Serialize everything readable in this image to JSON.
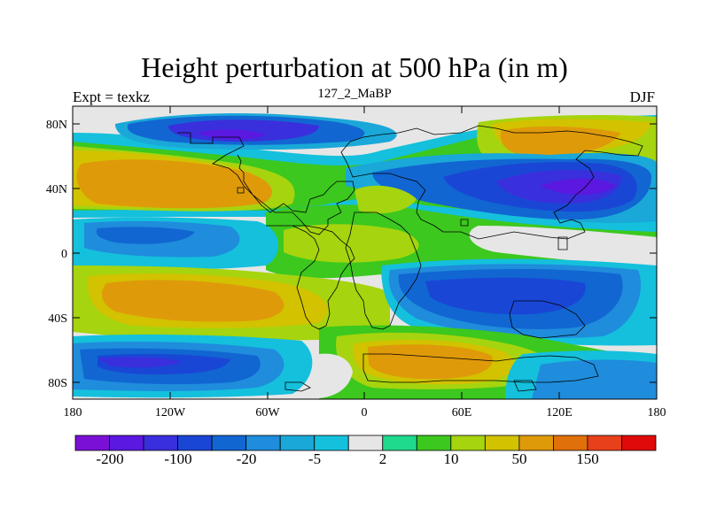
{
  "figure": {
    "title": "Height perturbation at 500 hPa (in m)",
    "left_label": "Expt = texkz",
    "center_label": "127_2_MaBP",
    "right_label": "DJF"
  },
  "axes": {
    "x_ticks": [
      "180",
      "120W",
      "60W",
      "0",
      "60E",
      "120E",
      "180"
    ],
    "y_ticks": [
      "80N",
      "40N",
      "0",
      "40S",
      "80S"
    ]
  },
  "colorbar": {
    "colors": [
      "#7a10d6",
      "#5a18e0",
      "#3a2fdc",
      "#1a46d6",
      "#1166d2",
      "#1f8cdc",
      "#1aa8d8",
      "#14c0dc",
      "#e6e6e6",
      "#1fd98c",
      "#3cc81e",
      "#a6d40e",
      "#d2c200",
      "#df9a0a",
      "#e0700a",
      "#e8401a",
      "#e00a0a"
    ],
    "labels": [
      "-200",
      "-100",
      "-20",
      "-5",
      "2",
      "10",
      "50",
      "150"
    ]
  }
}
